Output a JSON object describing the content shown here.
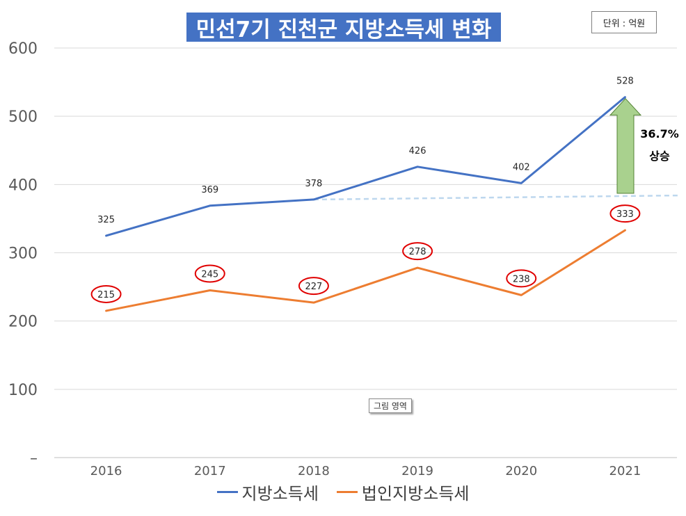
{
  "title": "민선7기 진천군 지방소득세 변화",
  "unit_note": "단위 : 억원",
  "tooltip": "그림 영역",
  "annotation": {
    "percent": "36.7%",
    "word": "상승",
    "arrow_color": "#a9d18e",
    "arrow_border": "#548235"
  },
  "colors": {
    "series1": "#4472c4",
    "series2": "#ed7d31",
    "circle": "#e00000",
    "trend": "#bdd7ee"
  },
  "chart_data": {
    "type": "line",
    "x": [
      "2016",
      "2017",
      "2018",
      "2019",
      "2020",
      "2021"
    ],
    "ylim": [
      0,
      600
    ],
    "yticks": [
      "–",
      "100",
      "200",
      "300",
      "400",
      "500",
      "600"
    ],
    "grid": true,
    "legend_position": "bottom",
    "series": [
      {
        "name": "지방소득세",
        "values": [
          325,
          369,
          378,
          426,
          402,
          528
        ]
      },
      {
        "name": "법인지방소득세",
        "values": [
          215,
          245,
          227,
          278,
          238,
          333
        ]
      }
    ],
    "trendline": {
      "from": 378,
      "to": 384
    }
  }
}
